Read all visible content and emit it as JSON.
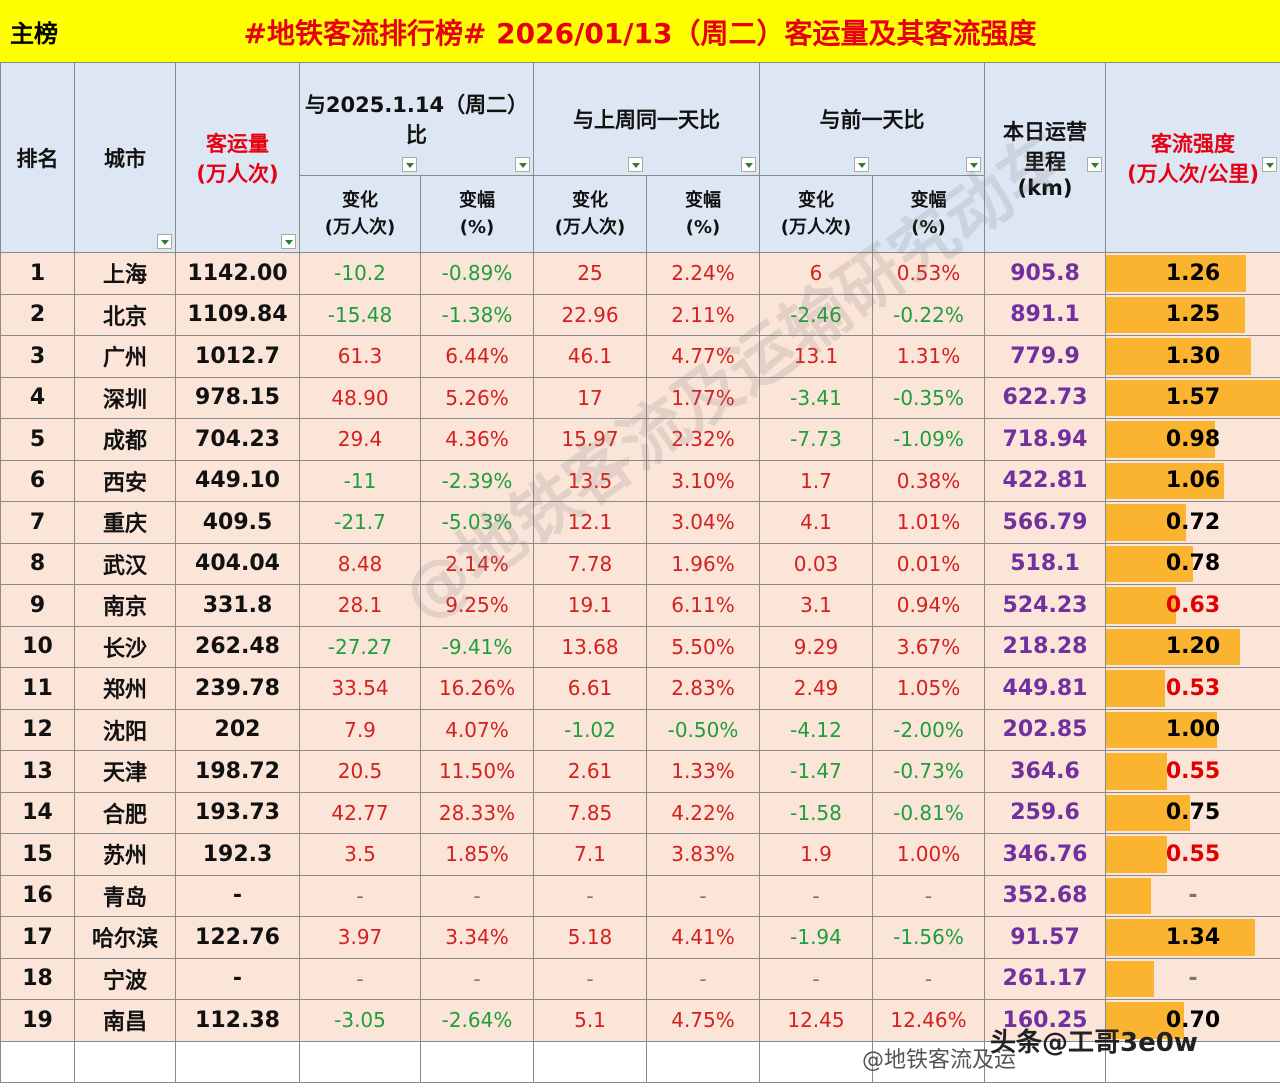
{
  "header": {
    "board": "主榜",
    "title": "#地铁客流排行榜# 2026/01/13（周二）客运量及其客流强度"
  },
  "columns": {
    "rank": "排名",
    "city": "城市",
    "volume": "客运量\n(万人次)",
    "yoy_group": "与2025.1.14（周二）\n比",
    "wow_group": "与上周同一天比",
    "dod_group": "与前一天比",
    "change": "变化\n(万人次)",
    "pct": "变幅\n(%)",
    "mileage": "本日运营\n里程\n(km)",
    "intensity": "客流强度\n(万人次/公里)"
  },
  "rows": [
    {
      "rank": "1",
      "city": "上海",
      "vol": "1142.00",
      "yc": "-10.2",
      "yp": "-0.89%",
      "wc": "25",
      "wp": "2.24%",
      "dc": "6",
      "dp": "0.53%",
      "km": "905.8",
      "int": "1.26",
      "iv": 1.26
    },
    {
      "rank": "2",
      "city": "北京",
      "vol": "1109.84",
      "yc": "-15.48",
      "yp": "-1.38%",
      "wc": "22.96",
      "wp": "2.11%",
      "dc": "-2.46",
      "dp": "-0.22%",
      "km": "891.1",
      "int": "1.25",
      "iv": 1.25
    },
    {
      "rank": "3",
      "city": "广州",
      "vol": "1012.7",
      "yc": "61.3",
      "yp": "6.44%",
      "wc": "46.1",
      "wp": "4.77%",
      "dc": "13.1",
      "dp": "1.31%",
      "km": "779.9",
      "int": "1.30",
      "iv": 1.3
    },
    {
      "rank": "4",
      "city": "深圳",
      "vol": "978.15",
      "yc": "48.90",
      "yp": "5.26%",
      "wc": "17",
      "wp": "1.77%",
      "dc": "-3.41",
      "dp": "-0.35%",
      "km": "622.73",
      "int": "1.57",
      "iv": 1.57
    },
    {
      "rank": "5",
      "city": "成都",
      "vol": "704.23",
      "yc": "29.4",
      "yp": "4.36%",
      "wc": "15.97",
      "wp": "2.32%",
      "dc": "-7.73",
      "dp": "-1.09%",
      "km": "718.94",
      "int": "0.98",
      "iv": 0.98
    },
    {
      "rank": "6",
      "city": "西安",
      "vol": "449.10",
      "yc": "-11",
      "yp": "-2.39%",
      "wc": "13.5",
      "wp": "3.10%",
      "dc": "1.7",
      "dp": "0.38%",
      "km": "422.81",
      "int": "1.06",
      "iv": 1.06
    },
    {
      "rank": "7",
      "city": "重庆",
      "vol": "409.5",
      "yc": "-21.7",
      "yp": "-5.03%",
      "wc": "12.1",
      "wp": "3.04%",
      "dc": "4.1",
      "dp": "1.01%",
      "km": "566.79",
      "int": "0.72",
      "iv": 0.72
    },
    {
      "rank": "8",
      "city": "武汉",
      "vol": "404.04",
      "yc": "8.48",
      "yp": "2.14%",
      "wc": "7.78",
      "wp": "1.96%",
      "dc": "0.03",
      "dp": "0.01%",
      "km": "518.1",
      "int": "0.78",
      "iv": 0.78
    },
    {
      "rank": "9",
      "city": "南京",
      "vol": "331.8",
      "yc": "28.1",
      "yp": "9.25%",
      "wc": "19.1",
      "wp": "6.11%",
      "dc": "3.1",
      "dp": "0.94%",
      "km": "524.23",
      "int": "0.63",
      "iv": 0.63
    },
    {
      "rank": "10",
      "city": "长沙",
      "vol": "262.48",
      "yc": "-27.27",
      "yp": "-9.41%",
      "wc": "13.68",
      "wp": "5.50%",
      "dc": "9.29",
      "dp": "3.67%",
      "km": "218.28",
      "int": "1.20",
      "iv": 1.2
    },
    {
      "rank": "11",
      "city": "郑州",
      "vol": "239.78",
      "yc": "33.54",
      "yp": "16.26%",
      "wc": "6.61",
      "wp": "2.83%",
      "dc": "2.49",
      "dp": "1.05%",
      "km": "449.81",
      "int": "0.53",
      "iv": 0.53
    },
    {
      "rank": "12",
      "city": "沈阳",
      "vol": "202",
      "yc": "7.9",
      "yp": "4.07%",
      "wc": "-1.02",
      "wp": "-0.50%",
      "dc": "-4.12",
      "dp": "-2.00%",
      "km": "202.85",
      "int": "1.00",
      "iv": 1.0
    },
    {
      "rank": "13",
      "city": "天津",
      "vol": "198.72",
      "yc": "20.5",
      "yp": "11.50%",
      "wc": "2.61",
      "wp": "1.33%",
      "dc": "-1.47",
      "dp": "-0.73%",
      "km": "364.6",
      "int": "0.55",
      "iv": 0.55
    },
    {
      "rank": "14",
      "city": "合肥",
      "vol": "193.73",
      "yc": "42.77",
      "yp": "28.33%",
      "wc": "7.85",
      "wp": "4.22%",
      "dc": "-1.58",
      "dp": "-0.81%",
      "km": "259.6",
      "int": "0.75",
      "iv": 0.75
    },
    {
      "rank": "15",
      "city": "苏州",
      "vol": "192.3",
      "yc": "3.5",
      "yp": "1.85%",
      "wc": "7.1",
      "wp": "3.83%",
      "dc": "1.9",
      "dp": "1.00%",
      "km": "346.76",
      "int": "0.55",
      "iv": 0.55
    },
    {
      "rank": "16",
      "city": "青岛",
      "vol": "-",
      "yc": "-",
      "yp": "-",
      "wc": "-",
      "wp": "-",
      "dc": "-",
      "dp": "-",
      "km": "352.68",
      "int": "-",
      "iv": 0.4
    },
    {
      "rank": "17",
      "city": "哈尔滨",
      "vol": "122.76",
      "yc": "3.97",
      "yp": "3.34%",
      "wc": "5.18",
      "wp": "4.41%",
      "dc": "-1.94",
      "dp": "-1.56%",
      "km": "91.57",
      "int": "1.34",
      "iv": 1.34
    },
    {
      "rank": "18",
      "city": "宁波",
      "vol": "-",
      "yc": "-",
      "yp": "-",
      "wc": "-",
      "wp": "-",
      "dc": "-",
      "dp": "-",
      "km": "261.17",
      "int": "-",
      "iv": 0.43
    },
    {
      "rank": "19",
      "city": "南昌",
      "vol": "112.38",
      "yc": "-3.05",
      "yp": "-2.64%",
      "wc": "5.1",
      "wp": "4.75%",
      "dc": "12.45",
      "dp": "12.46%",
      "km": "160.25",
      "int": "0.70",
      "iv": 0.7
    }
  ],
  "intensity_max": 1.57,
  "colors": {
    "increase": "#d62020",
    "decrease": "#1e9e3c",
    "bar": "#fbb430",
    "mileage": "#7030a0",
    "low_intensity": "#e00000"
  },
  "watermark": "@地铁客流及运输研究动车",
  "footer": {
    "weibo": "@地铁客流及运",
    "toutiao": "头条@工哥3e0w"
  }
}
